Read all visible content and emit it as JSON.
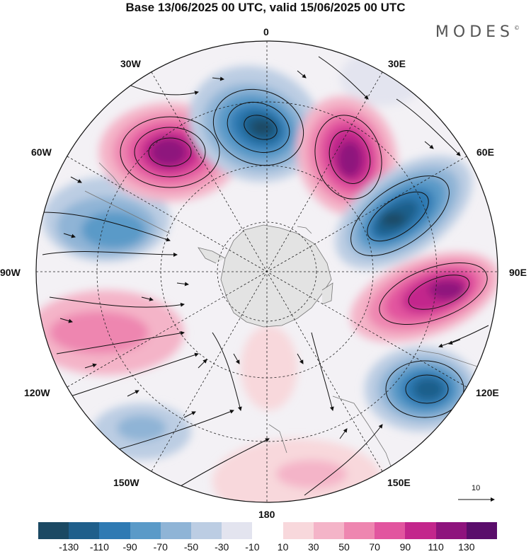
{
  "header": {
    "title": "Base 13/06/2025 00 UTC, valid 15/06/2025 00 UTC",
    "brand": "MODES",
    "brand_mark": "©"
  },
  "map": {
    "projection": "south-polar-stereographic",
    "longitude_labels": {
      "lon_0": "0",
      "lon_30e": "30E",
      "lon_60e": "60E",
      "lon_90e": "90E",
      "lon_120e": "120E",
      "lon_150e": "150E",
      "lon_180": "180",
      "lon_150w": "150W",
      "lon_120w": "120W",
      "lon_90w": "90W",
      "lon_60w": "60W",
      "lon_30w": "30W"
    },
    "vector_reference_label": "10",
    "land_color": "#e3e3e3"
  },
  "colorbar": {
    "colors": [
      "#1b4963",
      "#1f5f8b",
      "#2f7ab3",
      "#5a9ac8",
      "#8fb4d6",
      "#bccde3",
      "#e3e4ef",
      "#ffffff",
      "#f8d8dc",
      "#f4b4c8",
      "#ee86b0",
      "#e2559f",
      "#c3268c",
      "#8e137d",
      "#5a0d6b"
    ],
    "tick_labels": [
      "-130",
      "-110",
      "-90",
      "-70",
      "-50",
      "-30",
      "-10",
      "10",
      "30",
      "50",
      "70",
      "90",
      "110",
      "130"
    ]
  }
}
